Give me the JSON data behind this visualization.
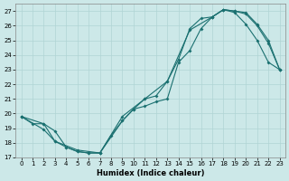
{
  "xlabel": "Humidex (Indice chaleur)",
  "bg_color": "#cce8e8",
  "grid_color": "#b0d4d4",
  "line_color": "#1a7070",
  "xlim": [
    -0.5,
    23.5
  ],
  "ylim": [
    17,
    27.5
  ],
  "xticks": [
    0,
    1,
    2,
    3,
    4,
    5,
    6,
    7,
    8,
    9,
    10,
    11,
    12,
    13,
    14,
    15,
    16,
    17,
    18,
    19,
    20,
    21,
    22,
    23
  ],
  "yticks": [
    17,
    18,
    19,
    20,
    21,
    22,
    23,
    24,
    25,
    26,
    27
  ],
  "line1_x": [
    0,
    1,
    2,
    3,
    4,
    5,
    6,
    7,
    9,
    10,
    11,
    12,
    13,
    14,
    15,
    16,
    17,
    18,
    19,
    20,
    21,
    22,
    23
  ],
  "line1_y": [
    19.8,
    19.3,
    19.3,
    18.8,
    17.7,
    17.4,
    17.3,
    17.3,
    19.5,
    20.3,
    21.0,
    21.2,
    22.2,
    23.7,
    25.8,
    26.5,
    26.6,
    27.1,
    27.0,
    26.8,
    26.0,
    24.8,
    23.0
  ],
  "line2_x": [
    0,
    2,
    3,
    5,
    7,
    9,
    11,
    13,
    15,
    17,
    18,
    19,
    20,
    21,
    22,
    23
  ],
  "line2_y": [
    19.8,
    18.9,
    18.1,
    17.5,
    17.3,
    19.8,
    21.0,
    22.2,
    25.7,
    26.6,
    27.1,
    26.9,
    26.1,
    25.0,
    23.5,
    23.0
  ],
  "line3_x": [
    0,
    2,
    3,
    4,
    5,
    6,
    7,
    8,
    9,
    10,
    11,
    12,
    13,
    14,
    15,
    16,
    17,
    18,
    19,
    20,
    21,
    22,
    23
  ],
  "line3_y": [
    19.8,
    19.3,
    18.1,
    17.7,
    17.4,
    17.3,
    17.3,
    18.5,
    19.5,
    20.3,
    20.5,
    20.8,
    21.0,
    23.5,
    24.3,
    25.8,
    26.6,
    27.1,
    27.0,
    26.9,
    26.1,
    25.0,
    23.0
  ]
}
